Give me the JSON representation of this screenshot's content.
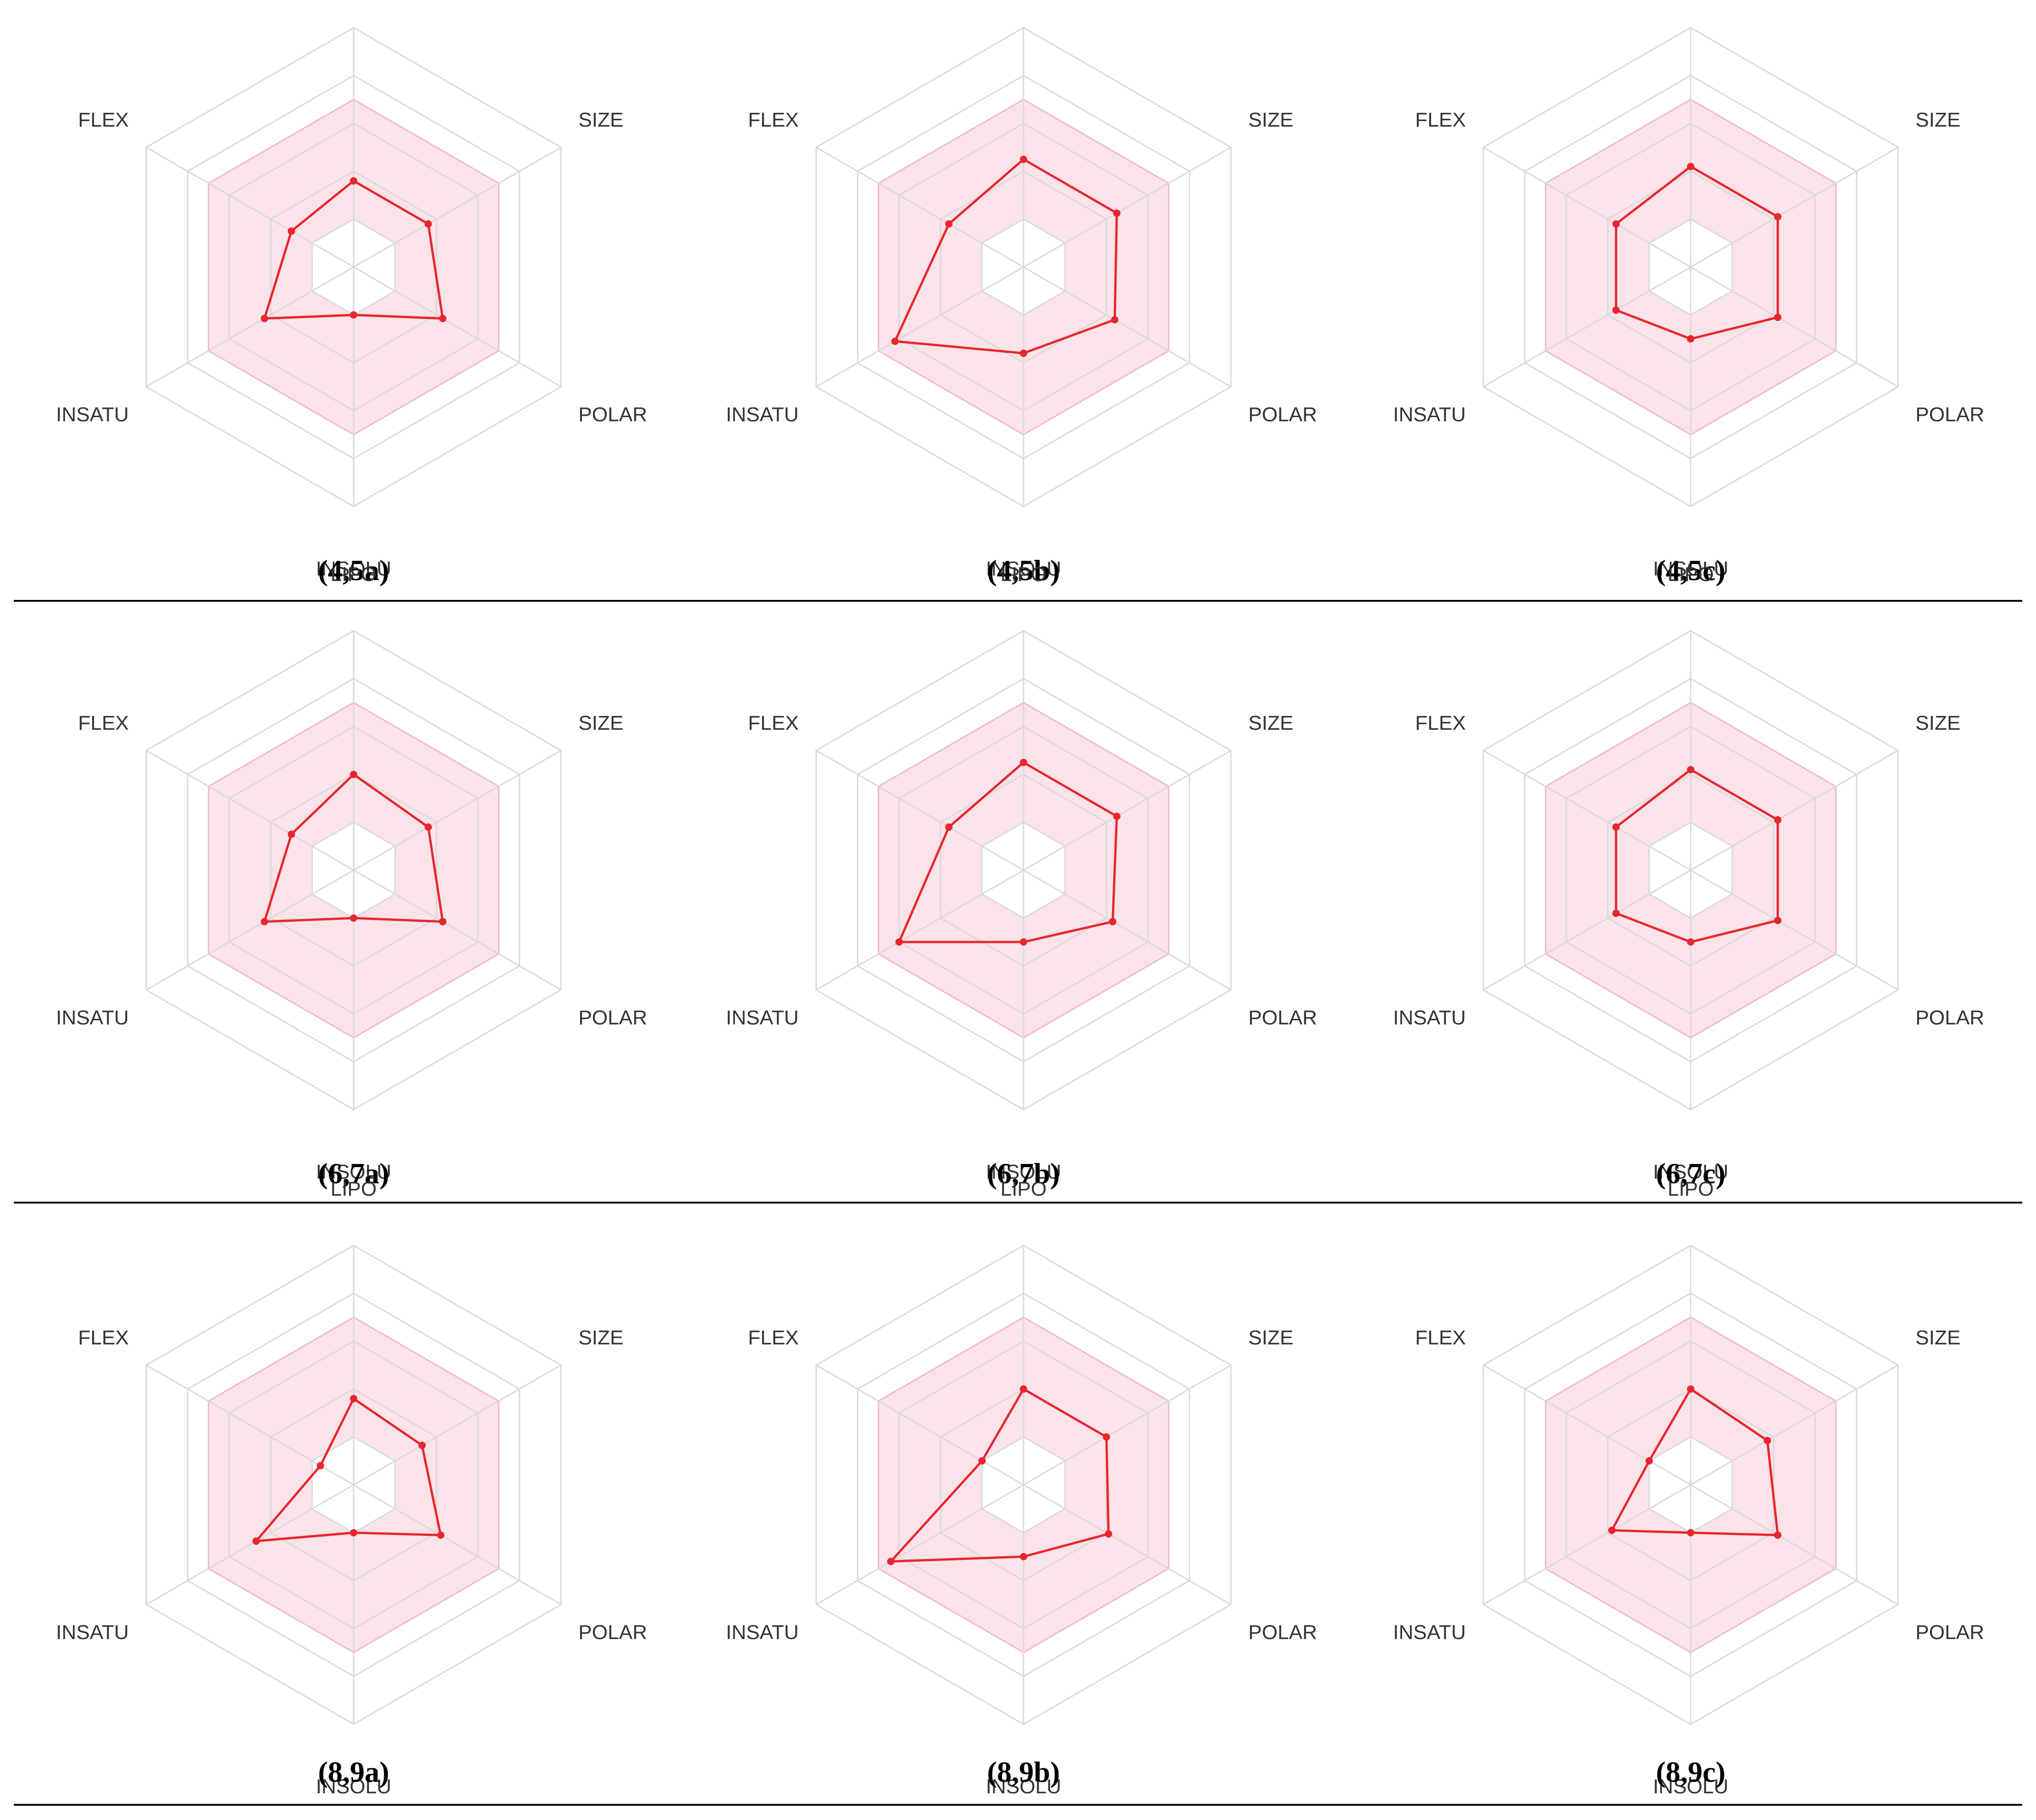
{
  "figure": {
    "rows": [
      {
        "panels": [
          0,
          1,
          2
        ]
      },
      {
        "panels": [
          3,
          4,
          5
        ]
      },
      {
        "panels": [
          6,
          7,
          8
        ]
      }
    ]
  },
  "colors": {
    "grid": "#d9d9d9",
    "band_fill": "#fbe3ea",
    "band_stroke": "#f0b8c6",
    "series": "#e8262f",
    "separator": "#000000",
    "text": "#333333"
  },
  "chart_data": [
    {
      "type": "radar",
      "caption": "(4,5a)",
      "axes": [
        "LIPO",
        "SIZE",
        "POLAR",
        "INSOLU",
        "INSATU",
        "FLEX"
      ],
      "rlim": [
        0,
        1
      ],
      "band": [
        0.2,
        0.7
      ],
      "grid_levels": [
        0.2,
        0.4,
        0.6,
        0.8,
        1.0
      ],
      "values": [
        0.36,
        0.36,
        0.43,
        0.2,
        0.43,
        0.3
      ]
    },
    {
      "type": "radar",
      "caption": "(4,5b)",
      "axes": [
        "LIPO",
        "SIZE",
        "POLAR",
        "INSOLU",
        "INSATU",
        "FLEX"
      ],
      "rlim": [
        0,
        1
      ],
      "band": [
        0.2,
        0.7
      ],
      "grid_levels": [
        0.2,
        0.4,
        0.6,
        0.8,
        1.0
      ],
      "values": [
        0.45,
        0.45,
        0.44,
        0.36,
        0.62,
        0.36
      ]
    },
    {
      "type": "radar",
      "caption": "(4,5c)",
      "axes": [
        "LIPO",
        "SIZE",
        "POLAR",
        "INSOLU",
        "INSATU",
        "FLEX"
      ],
      "rlim": [
        0,
        1
      ],
      "band": [
        0.2,
        0.7
      ],
      "grid_levels": [
        0.2,
        0.4,
        0.6,
        0.8,
        1.0
      ],
      "values": [
        0.42,
        0.42,
        0.42,
        0.3,
        0.36,
        0.36
      ]
    },
    {
      "type": "radar",
      "caption": "(6,7a)",
      "axes": [
        "LIPO",
        "SIZE",
        "POLAR",
        "INSOLU",
        "INSATU",
        "FLEX"
      ],
      "rlim": [
        0,
        1
      ],
      "band": [
        0.2,
        0.7
      ],
      "grid_levels": [
        0.2,
        0.4,
        0.6,
        0.8,
        1.0
      ],
      "values": [
        0.4,
        0.36,
        0.43,
        0.2,
        0.43,
        0.3
      ]
    },
    {
      "type": "radar",
      "caption": "(6,7b)",
      "axes": [
        "LIPO",
        "SIZE",
        "POLAR",
        "INSOLU",
        "INSATU",
        "FLEX"
      ],
      "rlim": [
        0,
        1
      ],
      "band": [
        0.2,
        0.7
      ],
      "grid_levels": [
        0.2,
        0.4,
        0.6,
        0.8,
        1.0
      ],
      "values": [
        0.45,
        0.45,
        0.43,
        0.3,
        0.6,
        0.36
      ]
    },
    {
      "type": "radar",
      "caption": "(6,7c)",
      "axes": [
        "LIPO",
        "SIZE",
        "POLAR",
        "INSOLU",
        "INSATU",
        "FLEX"
      ],
      "rlim": [
        0,
        1
      ],
      "band": [
        0.2,
        0.7
      ],
      "grid_levels": [
        0.2,
        0.4,
        0.6,
        0.8,
        1.0
      ],
      "values": [
        0.42,
        0.42,
        0.42,
        0.3,
        0.36,
        0.36
      ]
    },
    {
      "type": "radar",
      "caption": "(8,9a)",
      "axes": [
        "LIPO",
        "SIZE",
        "POLAR",
        "INSOLU",
        "INSATU",
        "FLEX"
      ],
      "rlim": [
        0,
        1
      ],
      "band": [
        0.2,
        0.7
      ],
      "grid_levels": [
        0.2,
        0.4,
        0.6,
        0.8,
        1.0
      ],
      "values": [
        0.36,
        0.33,
        0.42,
        0.2,
        0.47,
        0.16
      ]
    },
    {
      "type": "radar",
      "caption": "(8,9b)",
      "axes": [
        "LIPO",
        "SIZE",
        "POLAR",
        "INSOLU",
        "INSATU",
        "FLEX"
      ],
      "rlim": [
        0,
        1
      ],
      "band": [
        0.2,
        0.7
      ],
      "grid_levels": [
        0.2,
        0.4,
        0.6,
        0.8,
        1.0
      ],
      "values": [
        0.4,
        0.4,
        0.41,
        0.3,
        0.64,
        0.2
      ]
    },
    {
      "type": "radar",
      "caption": "(8,9c)",
      "axes": [
        "LIPO",
        "SIZE",
        "POLAR",
        "INSOLU",
        "INSATU",
        "FLEX"
      ],
      "rlim": [
        0,
        1
      ],
      "band": [
        0.2,
        0.7
      ],
      "grid_levels": [
        0.2,
        0.4,
        0.6,
        0.8,
        1.0
      ],
      "values": [
        0.4,
        0.37,
        0.42,
        0.2,
        0.38,
        0.2
      ]
    }
  ]
}
